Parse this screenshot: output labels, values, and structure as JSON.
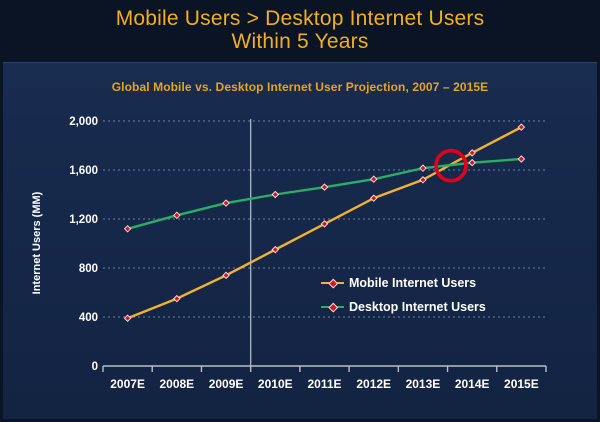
{
  "slide": {
    "title_line1": "Mobile Users > Desktop Internet Users",
    "title_line2": "Within 5 Years"
  },
  "chart": {
    "subtitle": "Global Mobile vs. Desktop Internet User Projection, 2007 – 2015E",
    "y_axis_title": "Internet Users (MM)"
  },
  "chart_data": {
    "type": "line",
    "title": "Global Mobile vs. Desktop Internet User Projection, 2007 – 2015E",
    "xlabel": "",
    "ylabel": "Internet Users (MM)",
    "categories": [
      "2007E",
      "2008E",
      "2009E",
      "2010E",
      "2011E",
      "2012E",
      "2013E",
      "2014E",
      "2015E"
    ],
    "series": [
      {
        "name": "Mobile Internet Users",
        "color": "#f2b134",
        "values": [
          390,
          550,
          740,
          950,
          1160,
          1370,
          1520,
          1740,
          1950
        ]
      },
      {
        "name": "Desktop Internet Users",
        "color": "#2bad62",
        "values": [
          1120,
          1230,
          1330,
          1400,
          1460,
          1525,
          1615,
          1660,
          1690
        ]
      }
    ],
    "ylim": [
      0,
      2000
    ],
    "yticks": [
      0,
      400,
      800,
      1200,
      1600,
      2000
    ],
    "ytick_labels": [
      "0",
      "400",
      "800",
      "1,200",
      "1,600",
      "2,000"
    ],
    "grid": "horizontal dashed gridlines",
    "legend_position": "inside middle-right",
    "marker": {
      "shape": "diamond",
      "color": "#e0101f",
      "outline": "#f5e9e9"
    },
    "annotations": [
      {
        "type": "circle-highlight",
        "label": "mobile-desktop-crossover",
        "x_index": 6.57,
        "value": 1635,
        "radius": 15,
        "color": "#e00018"
      },
      {
        "type": "vertical-line",
        "label": "divider-between-2009E-2010E",
        "x_boundary_index": 3,
        "color": "#a3aebb"
      }
    ]
  },
  "colors": {
    "slide_background": "#0a1424",
    "panel_background": "#15284a",
    "title_gold": "#f2ae24",
    "subtitle_gold": "#e7a41e",
    "axis_text": "#ffffff"
  }
}
